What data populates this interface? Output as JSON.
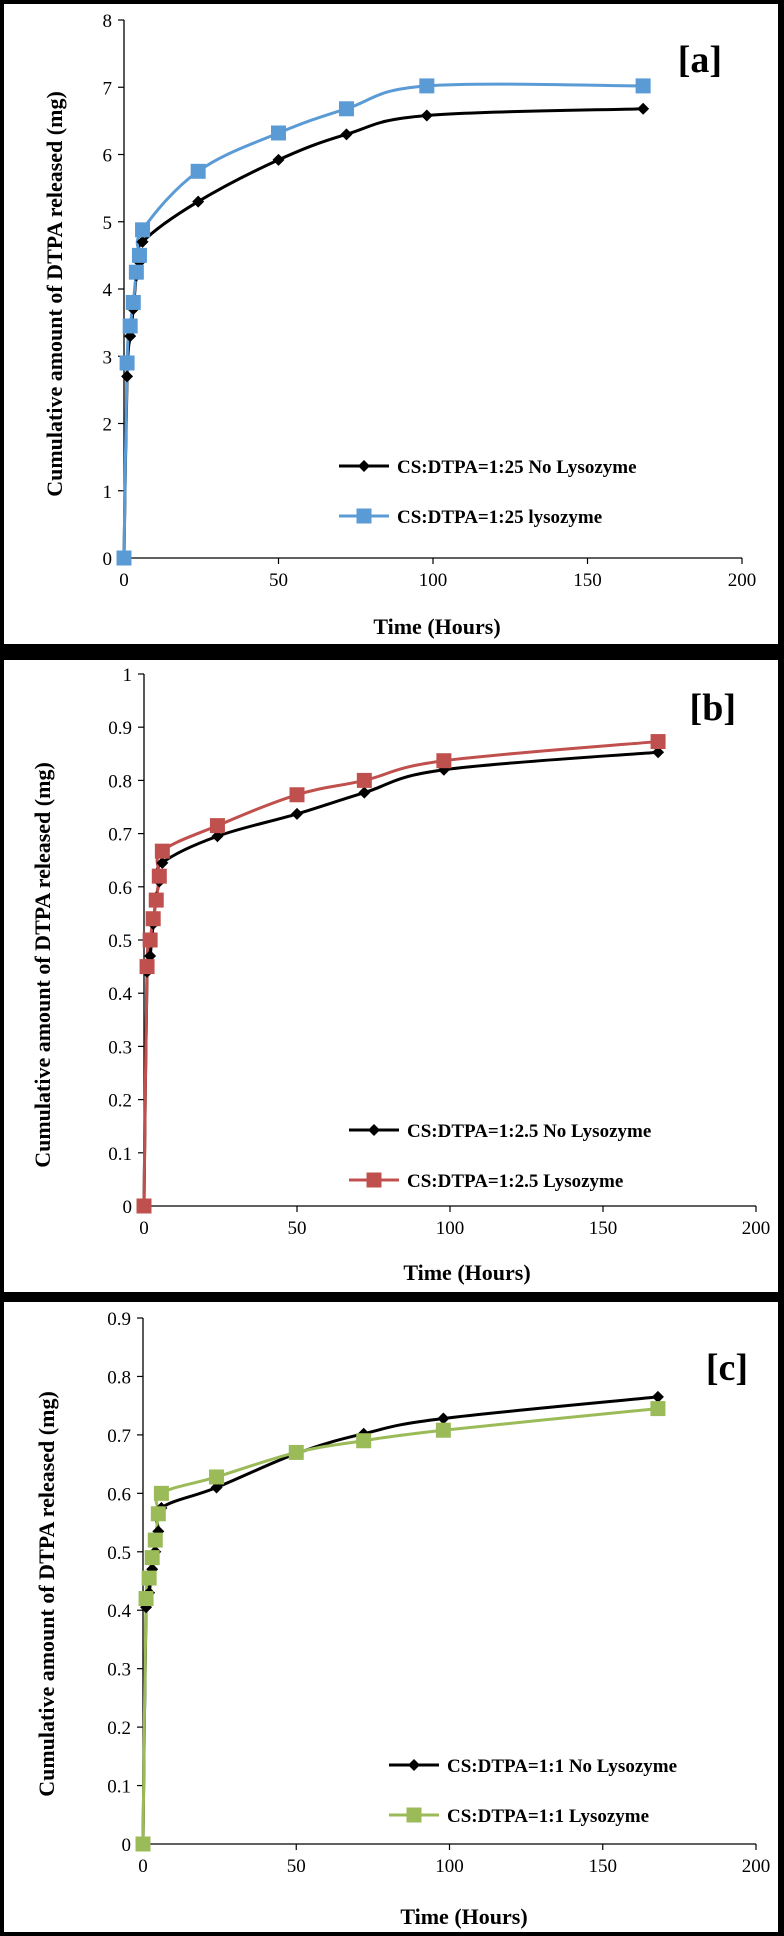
{
  "chart_data": [
    {
      "type": "line",
      "panel_label": "[a]",
      "xlabel": "Time (Hours)",
      "ylabel": "Cumulative amount of DTPA released (mg)",
      "xlim": [
        0,
        200
      ],
      "ylim": [
        0,
        8
      ],
      "xticks": [
        0,
        50,
        100,
        150,
        200
      ],
      "yticks": [
        0,
        1,
        2,
        3,
        4,
        5,
        6,
        7,
        8
      ],
      "legend": "bottom-right",
      "series": [
        {
          "name": "CS:DTPA=1:25 No Lysozyme",
          "color": "#000000",
          "marker": "diamond",
          "x": [
            0,
            1,
            2,
            3,
            4,
            5,
            6,
            24,
            50,
            72,
            98,
            168
          ],
          "y": [
            0,
            2.7,
            3.3,
            3.7,
            4.2,
            4.4,
            4.7,
            5.3,
            5.92,
            6.3,
            6.58,
            6.68
          ]
        },
        {
          "name": "CS:DTPA=1:25 lysozyme",
          "color": "#5B9BD5",
          "marker": "square",
          "x": [
            0,
            1,
            2,
            3,
            4,
            5,
            6,
            24,
            50,
            72,
            98,
            168
          ],
          "y": [
            0,
            2.9,
            3.45,
            3.8,
            4.25,
            4.5,
            4.88,
            5.75,
            6.32,
            6.68,
            7.02,
            7.02
          ]
        }
      ]
    },
    {
      "type": "line",
      "panel_label": "[b]",
      "xlabel": "Time (Hours)",
      "ylabel": "Cumulative amount of DTPA released (mg)",
      "xlim": [
        0,
        200
      ],
      "ylim": [
        0,
        1
      ],
      "xticks": [
        0,
        50,
        100,
        150,
        200
      ],
      "yticks": [
        0,
        0.1,
        0.2,
        0.3,
        0.4,
        0.5,
        0.6,
        0.7,
        0.8,
        0.9,
        1
      ],
      "legend": "bottom-right",
      "series": [
        {
          "name": "CS:DTPA=1:2.5 No Lysozyme",
          "color": "#000000",
          "marker": "diamond",
          "x": [
            0,
            1,
            2,
            3,
            4,
            5,
            6,
            24,
            50,
            72,
            98,
            168
          ],
          "y": [
            0,
            0.44,
            0.47,
            0.53,
            0.58,
            0.61,
            0.645,
            0.695,
            0.737,
            0.777,
            0.82,
            0.853
          ]
        },
        {
          "name": "CS:DTPA=1:2.5 Lysozyme",
          "color": "#C0504D",
          "marker": "square",
          "x": [
            0,
            1,
            2,
            3,
            4,
            5,
            6,
            24,
            50,
            72,
            98,
            168
          ],
          "y": [
            0,
            0.45,
            0.5,
            0.54,
            0.575,
            0.62,
            0.667,
            0.715,
            0.773,
            0.8,
            0.837,
            0.873
          ]
        }
      ]
    },
    {
      "type": "line",
      "panel_label": "[c]",
      "xlabel": "Time (Hours)",
      "ylabel": "Cumulative amount of DTPA released (mg)",
      "xlim": [
        0,
        200
      ],
      "ylim": [
        0,
        0.9
      ],
      "xticks": [
        0,
        50,
        100,
        150,
        200
      ],
      "yticks": [
        0,
        0.1,
        0.2,
        0.3,
        0.4,
        0.5,
        0.6,
        0.7,
        0.8,
        0.9
      ],
      "legend": "bottom-right",
      "series": [
        {
          "name": "CS:DTPA=1:1 No Lysozyme",
          "color": "#000000",
          "marker": "diamond",
          "x": [
            0,
            1,
            2,
            3,
            4,
            5,
            6,
            24,
            50,
            72,
            98,
            168
          ],
          "y": [
            0,
            0.405,
            0.43,
            0.47,
            0.5,
            0.535,
            0.575,
            0.61,
            0.668,
            0.702,
            0.728,
            0.765
          ]
        },
        {
          "name": "CS:DTPA=1:1 Lysozyme",
          "color": "#9BBB59",
          "marker": "square",
          "x": [
            0,
            1,
            2,
            3,
            4,
            5,
            6,
            24,
            50,
            72,
            98,
            168
          ],
          "y": [
            0,
            0.42,
            0.455,
            0.49,
            0.52,
            0.565,
            0.6,
            0.628,
            0.67,
            0.69,
            0.708,
            0.745
          ]
        }
      ]
    }
  ]
}
